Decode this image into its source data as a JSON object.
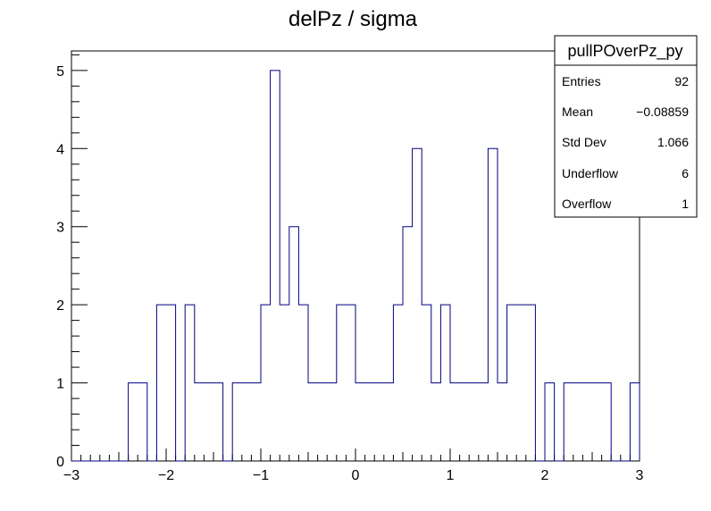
{
  "chart_data": {
    "type": "bar",
    "title": "delPz / sigma",
    "xlabel": "",
    "ylabel": "",
    "xlim": [
      -3,
      3
    ],
    "ylim": [
      0,
      5.25
    ],
    "x_ticks": [
      "−3",
      "−2",
      "−1",
      "0",
      "1",
      "2",
      "3"
    ],
    "y_ticks": [
      "0",
      "1",
      "2",
      "3",
      "4",
      "5"
    ],
    "nbins": 60,
    "bin_width": 0.1,
    "bins": [
      {
        "x": -2.35,
        "count": 1
      },
      {
        "x": -2.25,
        "count": 1
      },
      {
        "x": -2.05,
        "count": 2
      },
      {
        "x": -1.95,
        "count": 2
      },
      {
        "x": -1.75,
        "count": 2
      },
      {
        "x": -1.65,
        "count": 1
      },
      {
        "x": -1.55,
        "count": 1
      },
      {
        "x": -1.45,
        "count": 1
      },
      {
        "x": -1.25,
        "count": 1
      },
      {
        "x": -1.15,
        "count": 1
      },
      {
        "x": -1.05,
        "count": 1
      },
      {
        "x": -0.95,
        "count": 2
      },
      {
        "x": -0.85,
        "count": 5
      },
      {
        "x": -0.75,
        "count": 2
      },
      {
        "x": -0.65,
        "count": 3
      },
      {
        "x": -0.55,
        "count": 2
      },
      {
        "x": -0.45,
        "count": 1
      },
      {
        "x": -0.35,
        "count": 1
      },
      {
        "x": -0.25,
        "count": 1
      },
      {
        "x": -0.15,
        "count": 2
      },
      {
        "x": -0.05,
        "count": 2
      },
      {
        "x": 0.05,
        "count": 1
      },
      {
        "x": 0.15,
        "count": 1
      },
      {
        "x": 0.25,
        "count": 1
      },
      {
        "x": 0.35,
        "count": 1
      },
      {
        "x": 0.45,
        "count": 2
      },
      {
        "x": 0.55,
        "count": 3
      },
      {
        "x": 0.65,
        "count": 4
      },
      {
        "x": 0.75,
        "count": 2
      },
      {
        "x": 0.85,
        "count": 1
      },
      {
        "x": 0.95,
        "count": 2
      },
      {
        "x": 1.05,
        "count": 1
      },
      {
        "x": 1.15,
        "count": 1
      },
      {
        "x": 1.25,
        "count": 1
      },
      {
        "x": 1.35,
        "count": 1
      },
      {
        "x": 1.45,
        "count": 4
      },
      {
        "x": 1.55,
        "count": 1
      },
      {
        "x": 1.65,
        "count": 2
      },
      {
        "x": 1.75,
        "count": 2
      },
      {
        "x": 1.85,
        "count": 2
      },
      {
        "x": 2.05,
        "count": 1
      },
      {
        "x": 2.25,
        "count": 1
      },
      {
        "x": 2.35,
        "count": 1
      },
      {
        "x": 2.45,
        "count": 1
      },
      {
        "x": 2.55,
        "count": 1
      },
      {
        "x": 2.65,
        "count": 1
      },
      {
        "x": 2.95,
        "count": 1
      }
    ],
    "line_color": "#000080"
  },
  "stats_box": {
    "name": "pullPOverPz_py",
    "rows": [
      {
        "label": "Entries",
        "value": "92"
      },
      {
        "label": "Mean",
        "value": "−0.08859"
      },
      {
        "label": "Std Dev",
        "value": "1.066"
      },
      {
        "label": "Underflow",
        "value": "6"
      },
      {
        "label": "Overflow",
        "value": "1"
      }
    ]
  }
}
